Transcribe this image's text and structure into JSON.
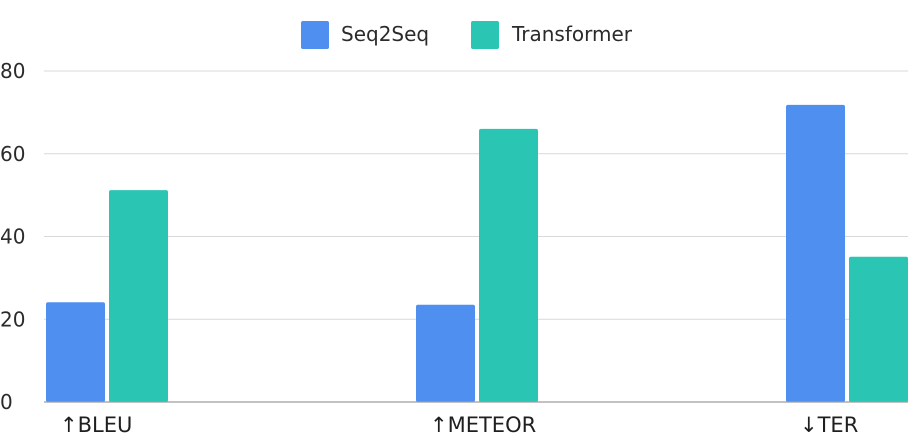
{
  "chart_data": {
    "type": "bar",
    "categories": [
      "↑BLEU",
      "↑METEOR",
      "↓TER"
    ],
    "series": [
      {
        "name": "Seq2Seq",
        "color": "#4f8ff0",
        "values": [
          24.1,
          23.5,
          71.8
        ]
      },
      {
        "name": "Transformer",
        "color": "#2bc5b4",
        "values": [
          51.2,
          66.0,
          35.1
        ]
      }
    ],
    "ylim": [
      0,
      80
    ],
    "yticks": [
      0,
      20,
      40,
      60,
      80
    ],
    "grid": true,
    "legend": "top-center",
    "title": "",
    "xlabel": "",
    "ylabel": ""
  }
}
